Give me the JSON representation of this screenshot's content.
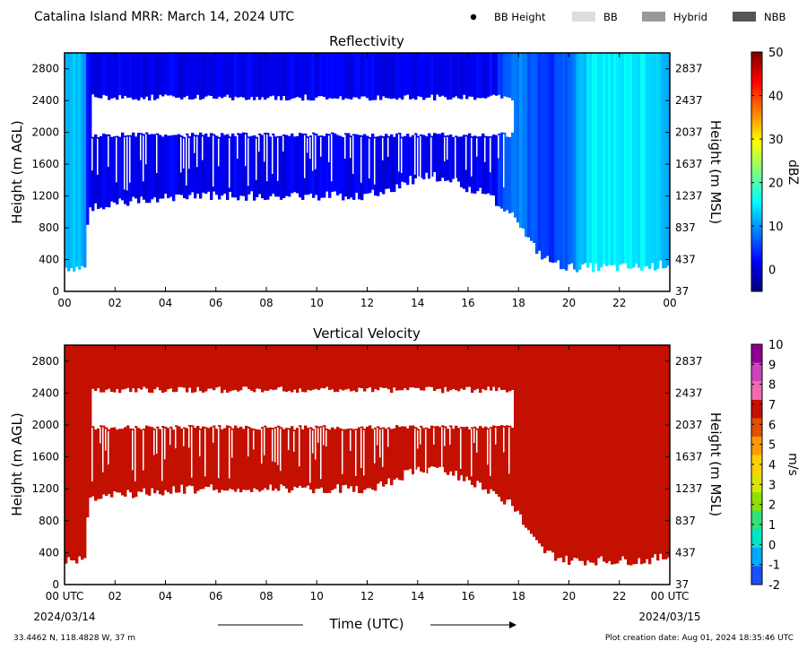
{
  "header": {
    "title": "Catalina Island MRR:  March 14, 2024 UTC",
    "legend": [
      {
        "label": "BB Height",
        "marker": "dot",
        "color": "#000000"
      },
      {
        "label": "BB",
        "marker": "box",
        "color": "#dddddd"
      },
      {
        "label": "Hybrid",
        "marker": "box",
        "color": "#999999"
      },
      {
        "label": "NBB",
        "marker": "box",
        "color": "#555555"
      }
    ]
  },
  "footer": {
    "location": "33.4462 N, 118.4828 W, 37 m",
    "creation": "Plot creation date: Aug 01, 2024 18:35:46 UTC",
    "xlabel": "Time (UTC)",
    "start_date": "2024/03/14",
    "end_date": "2024/03/15"
  },
  "chart_data": [
    {
      "type": "heatmap",
      "title": "Reflectivity",
      "ylabel": "Height (m AGL)",
      "ylabel_right": "Height (m MSL)",
      "x_ticks": [
        "00",
        "02",
        "04",
        "06",
        "08",
        "10",
        "12",
        "14",
        "16",
        "18",
        "20",
        "22",
        "00"
      ],
      "xlim": [
        0,
        24
      ],
      "y_ticks": [
        0,
        400,
        800,
        1200,
        1600,
        2000,
        2400,
        2800
      ],
      "y_ticks_right": [
        37,
        437,
        837,
        1237,
        1637,
        2037,
        2437,
        2837
      ],
      "ylim": [
        0,
        3000
      ],
      "colorbar": {
        "label": "dBZ",
        "min": -5,
        "max": 50,
        "ticks": [
          0,
          10,
          20,
          30,
          40,
          50
        ],
        "colormap": "jet"
      },
      "echo_profile": {
        "hours": [
          0,
          0.7,
          0.85,
          0.9,
          1.0,
          1.2,
          1.5,
          2,
          3,
          4,
          5,
          6,
          7,
          8,
          9,
          10,
          11,
          12,
          12.5,
          13,
          13.5,
          14,
          14.5,
          15,
          15.5,
          16,
          16.5,
          17,
          17.5,
          17.9,
          18,
          18.2,
          18.5,
          19,
          19.5,
          20,
          20.5,
          21,
          22,
          23,
          24
        ],
        "base_m": [
          300,
          300,
          300,
          800,
          1050,
          1050,
          1080,
          1120,
          1150,
          1180,
          1200,
          1200,
          1200,
          1200,
          1200,
          1200,
          1200,
          1200,
          1250,
          1300,
          1380,
          1420,
          1450,
          1430,
          1380,
          1300,
          1250,
          1150,
          1050,
          950,
          900,
          750,
          600,
          420,
          350,
          300,
          300,
          300,
          300,
          300,
          350
        ],
        "top_m": 3000,
        "reflectivity_dbz": [
          12,
          12,
          10,
          4,
          2,
          1,
          1,
          1,
          1,
          1,
          1,
          1,
          1,
          1,
          1,
          1,
          1,
          1,
          1,
          1,
          1,
          1,
          1,
          1,
          1,
          1,
          1,
          2,
          6,
          8,
          10,
          8,
          6,
          5,
          5,
          8,
          12,
          15,
          15,
          15,
          12
        ]
      },
      "gap_band_m": [
        2000,
        2400
      ],
      "gap_band_hours": [
        1.05,
        17.85
      ]
    },
    {
      "type": "heatmap",
      "title": "Vertical Velocity",
      "ylabel": "Height (m AGL)",
      "ylabel_right": "Height (m MSL)",
      "x_ticks": [
        "00 UTC",
        "02",
        "04",
        "06",
        "08",
        "10",
        "12",
        "14",
        "16",
        "18",
        "20",
        "22",
        "00 UTC"
      ],
      "xlim": [
        0,
        24
      ],
      "y_ticks": [
        0,
        400,
        800,
        1200,
        1600,
        2000,
        2400,
        2800
      ],
      "y_ticks_right": [
        37,
        437,
        837,
        1237,
        1637,
        2037,
        2437,
        2837
      ],
      "ylim": [
        0,
        3000
      ],
      "colorbar": {
        "label": "m/s",
        "min": -2,
        "max": 10,
        "ticks": [
          -2,
          -1,
          0,
          1,
          2,
          3,
          4,
          5,
          6,
          7,
          8,
          9,
          10
        ]
      },
      "velocity_ms": 6,
      "field_color": "#c41000"
    }
  ],
  "colors": {
    "axes": "#000000",
    "background": "#ffffff",
    "jet": [
      "#00007f",
      "#0000ff",
      "#007fff",
      "#00ffff",
      "#7fff7f",
      "#ffff00",
      "#ff7f00",
      "#ff0000",
      "#7f0000"
    ],
    "velocity_scale": [
      "#1e4fff",
      "#00aaff",
      "#00e5c8",
      "#33e07a",
      "#8ce000",
      "#d9e600",
      "#ffd000",
      "#ff9a00",
      "#e05000",
      "#c41000",
      "#f06ab0",
      "#cc44bb",
      "#900090"
    ]
  }
}
